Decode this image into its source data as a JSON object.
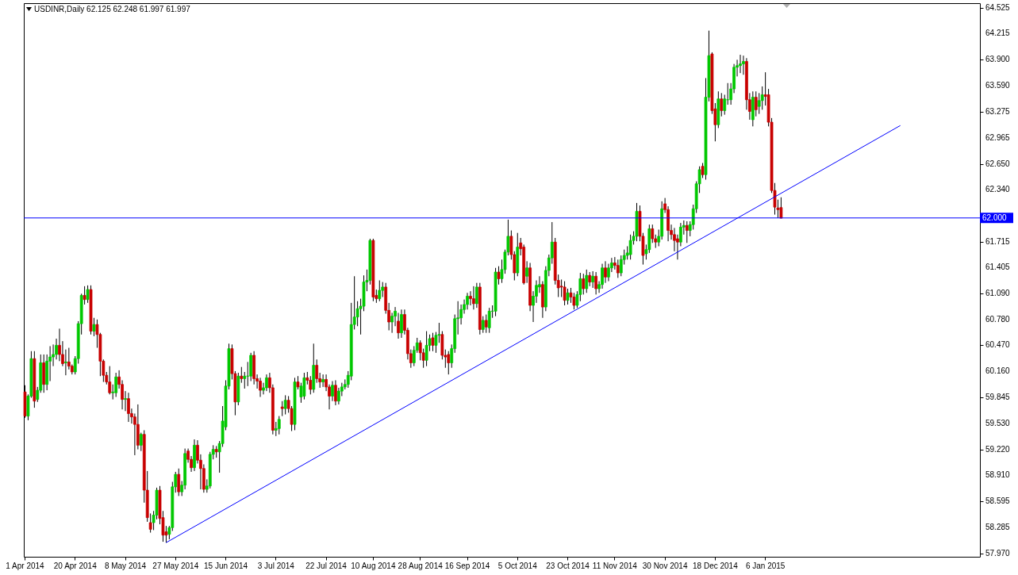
{
  "chart_data": {
    "type": "candlestick",
    "title": "USDINR,Daily  62.125 62.248 61.997 61.997",
    "categories": [
      "1 Apr 2014",
      null,
      null,
      null,
      null,
      null,
      null,
      null,
      null,
      null,
      null,
      null,
      null,
      null,
      null,
      null,
      "20 Apr 2014",
      null,
      null,
      null,
      null,
      null,
      null,
      null,
      null,
      null,
      null,
      null,
      null,
      null,
      null,
      null,
      "8 May 2014",
      null,
      null,
      null,
      null,
      null,
      null,
      null,
      null,
      null,
      null,
      null,
      null,
      null,
      null,
      null,
      "27 May 2014",
      null,
      null,
      null,
      null,
      null,
      null,
      null,
      null,
      null,
      null,
      null,
      null,
      null,
      null,
      null,
      "15 Jun 2014",
      null,
      null,
      null,
      null,
      null,
      null,
      null,
      null,
      null,
      null,
      null,
      null,
      null,
      null,
      null,
      "3 Jul 2014",
      null,
      null,
      null,
      null,
      null,
      null,
      null,
      null,
      null,
      null,
      null,
      null,
      null,
      null,
      null,
      "22 Jul 2014",
      null,
      null,
      null,
      null,
      null,
      null,
      null,
      null,
      null,
      null,
      null,
      null,
      null,
      null,
      "10 Aug 2014",
      null,
      null,
      null,
      null,
      null,
      null,
      null,
      null,
      null,
      null,
      null,
      null,
      null,
      null,
      "28 Aug 2014",
      null,
      null,
      null,
      null,
      null,
      null,
      null,
      null,
      null,
      null,
      null,
      null,
      null,
      null,
      "16 Sep 2014",
      null,
      null,
      null,
      null,
      null,
      null,
      null,
      null,
      null,
      null,
      null,
      null,
      null,
      null,
      null,
      "5 Oct 2014",
      null,
      null,
      null,
      null,
      null,
      null,
      null,
      null,
      null,
      null,
      null,
      null,
      null,
      null,
      null,
      "23 Oct 2014",
      null,
      null,
      null,
      null,
      null,
      null,
      null,
      null,
      null,
      null,
      null,
      null,
      null,
      null,
      "11 Nov 2014",
      null,
      null,
      null,
      null,
      null,
      null,
      null,
      null,
      null,
      null,
      null,
      null,
      null,
      null,
      null,
      "30 Nov 2014",
      null,
      null,
      null,
      null,
      null,
      null,
      null,
      null,
      null,
      null,
      null,
      null,
      null,
      null,
      null,
      "18 Dec 2014",
      null,
      null,
      null,
      null,
      null,
      null,
      null,
      null,
      null,
      null,
      null,
      null,
      null,
      null,
      null,
      "6 Jan 2015",
      null,
      null,
      null,
      null,
      null,
      null,
      null,
      null,
      null,
      null,
      null,
      null,
      null,
      null,
      null,
      null,
      null,
      null,
      null,
      null,
      null,
      null,
      null,
      null,
      null,
      null,
      null,
      null,
      null,
      null,
      null,
      null,
      null,
      null,
      null,
      null,
      null,
      null,
      null,
      null,
      null,
      null,
      null,
      null,
      null,
      null,
      null,
      null,
      null,
      null,
      null,
      null,
      null,
      null,
      null,
      null,
      null,
      null,
      null,
      null,
      null,
      null,
      null,
      null,
      null,
      null,
      null,
      null
    ],
    "ohlc": [
      [
        59.91,
        59.99,
        59.6,
        59.62
      ],
      [
        59.62,
        59.88,
        59.57,
        59.86
      ],
      [
        59.86,
        60.4,
        59.84,
        60.31
      ],
      [
        60.31,
        60.4,
        59.72,
        59.8
      ],
      [
        59.82,
        59.97,
        59.79,
        59.93
      ],
      [
        59.93,
        60.36,
        59.9,
        60.26
      ],
      [
        60.26,
        60.36,
        59.9,
        60.0
      ],
      [
        60.0,
        60.36,
        59.93,
        60.28
      ],
      [
        60.28,
        60.46,
        60.04,
        60.33
      ],
      [
        60.33,
        60.48,
        60.22,
        60.36
      ],
      [
        60.36,
        60.55,
        60.3,
        60.47
      ],
      [
        60.47,
        60.67,
        60.28,
        60.36
      ],
      [
        60.36,
        60.52,
        60.22,
        60.25
      ],
      [
        60.26,
        60.42,
        60.11,
        60.27
      ],
      [
        60.27,
        60.44,
        60.18,
        60.22
      ],
      [
        60.22,
        60.24,
        60.12,
        60.15
      ],
      [
        60.15,
        60.34,
        60.12,
        60.31
      ],
      [
        60.31,
        60.76,
        60.25,
        60.73
      ],
      [
        60.73,
        61.09,
        60.6,
        61.07
      ],
      [
        61.07,
        61.18,
        60.96,
        61.02
      ],
      [
        61.02,
        61.19,
        60.98,
        61.14
      ],
      [
        61.14,
        61.19,
        60.6,
        60.64
      ],
      [
        60.64,
        60.8,
        60.58,
        60.72
      ],
      [
        60.72,
        60.78,
        60.44,
        60.6
      ],
      [
        60.6,
        60.62,
        60.1,
        60.28
      ],
      [
        60.28,
        60.3,
        60.03,
        60.11
      ],
      [
        60.11,
        60.15,
        60.0,
        60.03
      ],
      [
        60.03,
        60.22,
        59.88,
        59.9
      ],
      [
        59.9,
        60.0,
        59.82,
        59.91
      ],
      [
        59.9,
        60.14,
        59.85,
        60.09
      ],
      [
        60.09,
        60.17,
        59.95,
        60.0
      ],
      [
        60.0,
        60.05,
        59.7,
        59.82
      ],
      [
        59.82,
        59.92,
        59.68,
        59.83
      ],
      [
        59.83,
        59.9,
        59.55,
        59.65
      ],
      [
        59.65,
        59.71,
        59.53,
        59.61
      ],
      [
        59.61,
        59.65,
        59.15,
        59.52
      ],
      [
        59.52,
        59.76,
        59.22,
        59.27
      ],
      [
        59.27,
        59.42,
        59.2,
        59.4
      ],
      [
        59.4,
        59.45,
        58.58,
        58.73
      ],
      [
        58.73,
        58.96,
        58.35,
        58.4
      ],
      [
        58.34,
        58.45,
        58.22,
        58.26
      ],
      [
        58.34,
        58.48,
        58.25,
        58.43
      ],
      [
        58.43,
        58.76,
        58.38,
        58.73
      ],
      [
        58.73,
        58.78,
        58.32,
        58.39
      ],
      [
        58.4,
        58.48,
        58.11,
        58.19
      ],
      [
        58.23,
        58.3,
        58.1,
        58.19
      ],
      [
        58.2,
        58.3,
        58.14,
        58.28
      ],
      [
        58.28,
        58.83,
        58.24,
        58.77
      ],
      [
        58.77,
        58.95,
        58.7,
        58.92
      ],
      [
        58.92,
        58.99,
        58.66,
        58.71
      ],
      [
        58.71,
        58.84,
        58.66,
        58.79
      ],
      [
        58.79,
        59.23,
        58.74,
        59.17
      ],
      [
        59.2,
        59.23,
        59.06,
        59.1
      ],
      [
        59.1,
        59.14,
        58.95,
        59.0
      ],
      [
        59.0,
        59.34,
        58.96,
        59.27
      ],
      [
        59.27,
        59.33,
        59.05,
        59.09
      ],
      [
        59.09,
        59.16,
        58.74,
        58.99
      ],
      [
        58.99,
        59.04,
        58.7,
        58.74
      ],
      [
        58.74,
        58.86,
        58.7,
        58.78
      ],
      [
        58.78,
        59.19,
        58.75,
        59.16
      ],
      [
        59.16,
        59.27,
        59.1,
        59.22
      ],
      [
        59.22,
        59.26,
        59.12,
        59.19
      ],
      [
        59.19,
        59.32,
        58.94,
        59.29
      ],
      [
        59.29,
        59.74,
        59.25,
        59.56
      ],
      [
        59.49,
        60.05,
        59.45,
        59.98
      ],
      [
        59.98,
        60.49,
        59.94,
        60.43
      ],
      [
        60.43,
        60.48,
        60.06,
        60.13
      ],
      [
        60.13,
        60.16,
        59.63,
        59.79
      ],
      [
        59.79,
        60.14,
        59.75,
        60.1
      ],
      [
        60.1,
        60.21,
        60.02,
        60.07
      ],
      [
        60.07,
        60.15,
        59.95,
        60.1
      ],
      [
        60.1,
        60.27,
        59.98,
        60.1
      ],
      [
        60.1,
        60.38,
        60.04,
        60.35
      ],
      [
        60.35,
        60.4,
        60.0,
        60.07
      ],
      [
        60.07,
        60.12,
        59.95,
        60.04
      ],
      [
        60.04,
        60.08,
        59.85,
        59.93
      ],
      [
        59.93,
        60.02,
        59.88,
        59.96
      ],
      [
        59.96,
        60.12,
        59.92,
        60.08
      ],
      [
        60.08,
        60.14,
        59.9,
        59.96
      ],
      [
        59.96,
        60.0,
        59.4,
        59.45
      ],
      [
        59.45,
        59.55,
        59.38,
        59.47
      ],
      [
        59.47,
        59.62,
        59.4,
        59.58
      ],
      [
        59.73,
        59.8,
        59.62,
        59.71
      ],
      [
        59.71,
        59.87,
        59.64,
        59.81
      ],
      [
        59.81,
        59.86,
        59.66,
        59.71
      ],
      [
        59.71,
        59.74,
        59.44,
        59.52
      ],
      [
        59.52,
        60.08,
        59.45,
        60.03
      ],
      [
        60.03,
        60.1,
        59.94,
        59.97
      ],
      [
        59.85,
        60.02,
        59.78,
        59.98
      ],
      [
        59.86,
        60.14,
        59.82,
        60.08
      ],
      [
        60.08,
        60.15,
        60.0,
        60.05
      ],
      [
        60.05,
        60.1,
        59.88,
        59.94
      ],
      [
        59.94,
        60.49,
        59.9,
        60.23
      ],
      [
        60.23,
        60.3,
        60.02,
        60.07
      ],
      [
        60.07,
        60.14,
        59.96,
        60.03
      ],
      [
        60.03,
        60.12,
        59.97,
        60.06
      ],
      [
        60.06,
        60.12,
        59.92,
        59.97
      ],
      [
        59.97,
        60.0,
        59.7,
        59.86
      ],
      [
        59.86,
        60.04,
        59.8,
        59.99
      ],
      [
        59.99,
        60.05,
        59.75,
        59.8
      ],
      [
        59.8,
        59.96,
        59.76,
        59.92
      ],
      [
        59.92,
        60.02,
        59.86,
        59.97
      ],
      [
        59.97,
        60.06,
        59.94,
        60.0
      ],
      [
        60.0,
        60.16,
        59.96,
        60.11
      ],
      [
        60.1,
        60.98,
        60.05,
        60.72
      ],
      [
        60.72,
        61.3,
        60.66,
        60.81
      ],
      [
        60.81,
        61.0,
        60.7,
        60.91
      ],
      [
        60.91,
        61.03,
        60.6,
        60.94
      ],
      [
        60.94,
        61.31,
        60.88,
        61.23
      ],
      [
        61.23,
        61.38,
        61.12,
        61.25
      ],
      [
        61.25,
        61.75,
        61.2,
        61.73
      ],
      [
        61.73,
        61.75,
        61.0,
        61.05
      ],
      [
        61.07,
        61.14,
        60.98,
        61.03
      ],
      [
        61.03,
        61.25,
        61.0,
        61.13
      ],
      [
        61.13,
        61.23,
        61.05,
        61.17
      ],
      [
        61.17,
        61.22,
        60.85,
        60.89
      ],
      [
        60.89,
        60.98,
        60.65,
        60.75
      ],
      [
        60.75,
        60.86,
        60.62,
        60.82
      ],
      [
        60.82,
        60.93,
        60.7,
        60.88
      ],
      [
        60.76,
        60.86,
        60.55,
        60.62
      ],
      [
        60.62,
        60.9,
        60.56,
        60.84
      ],
      [
        60.84,
        60.9,
        60.6,
        60.65
      ],
      [
        60.65,
        60.68,
        60.3,
        60.37
      ],
      [
        60.37,
        60.42,
        60.2,
        60.26
      ],
      [
        60.26,
        60.46,
        60.22,
        60.41
      ],
      [
        60.41,
        60.56,
        60.38,
        60.5
      ],
      [
        60.5,
        60.53,
        60.29,
        60.38
      ],
      [
        60.38,
        60.43,
        60.2,
        60.29
      ],
      [
        60.29,
        60.64,
        60.22,
        60.47
      ],
      [
        60.47,
        60.6,
        60.4,
        60.55
      ],
      [
        60.56,
        60.62,
        60.4,
        60.47
      ],
      [
        60.47,
        60.63,
        60.38,
        60.59
      ],
      [
        60.59,
        60.74,
        60.5,
        60.6
      ],
      [
        60.6,
        60.64,
        60.3,
        60.35
      ],
      [
        60.35,
        60.42,
        60.2,
        60.33
      ],
      [
        60.36,
        60.4,
        60.12,
        60.26
      ],
      [
        60.26,
        60.48,
        60.2,
        60.43
      ],
      [
        60.43,
        60.84,
        60.38,
        60.79
      ],
      [
        60.79,
        61.0,
        60.6,
        60.8
      ],
      [
        60.8,
        60.96,
        60.72,
        60.9
      ],
      [
        60.9,
        61.02,
        60.85,
        60.96
      ],
      [
        60.96,
        61.1,
        60.9,
        61.06
      ],
      [
        61.06,
        61.12,
        60.95,
        61.03
      ],
      [
        61.03,
        61.18,
        60.9,
        60.97
      ],
      [
        60.97,
        61.22,
        60.92,
        61.17
      ],
      [
        61.17,
        61.22,
        60.6,
        60.66
      ],
      [
        60.66,
        60.82,
        60.62,
        60.77
      ],
      [
        60.77,
        60.84,
        60.62,
        60.69
      ],
      [
        60.68,
        60.92,
        60.62,
        60.88
      ],
      [
        60.88,
        60.95,
        60.8,
        60.88
      ],
      [
        60.88,
        61.4,
        60.82,
        61.35
      ],
      [
        61.35,
        61.42,
        61.2,
        61.27
      ],
      [
        61.27,
        61.5,
        61.22,
        61.38
      ],
      [
        61.38,
        61.62,
        61.33,
        61.59
      ],
      [
        61.59,
        61.98,
        61.55,
        61.78
      ],
      [
        61.78,
        61.85,
        61.5,
        61.56
      ],
      [
        61.56,
        61.6,
        61.25,
        61.34
      ],
      [
        61.34,
        61.82,
        61.3,
        61.65
      ],
      [
        61.7,
        61.76,
        61.55,
        61.63
      ],
      [
        61.65,
        61.68,
        61.2,
        61.22
      ],
      [
        61.3,
        61.48,
        61.22,
        61.4
      ],
      [
        61.4,
        61.46,
        60.88,
        60.95
      ],
      [
        60.95,
        61.12,
        60.75,
        61.06
      ],
      [
        61.06,
        61.25,
        60.98,
        61.19
      ],
      [
        61.17,
        61.3,
        61.1,
        61.2
      ],
      [
        61.2,
        61.24,
        60.8,
        60.93
      ],
      [
        60.93,
        61.42,
        60.88,
        61.37
      ],
      [
        61.37,
        61.56,
        61.3,
        61.52
      ],
      [
        61.52,
        61.95,
        61.45,
        61.71
      ],
      [
        61.71,
        61.76,
        61.2,
        61.25
      ],
      [
        61.25,
        61.32,
        61.05,
        61.16
      ],
      [
        61.18,
        61.26,
        61.05,
        61.17
      ],
      [
        61.17,
        61.24,
        60.95,
        61.01
      ],
      [
        61.01,
        61.15,
        60.96,
        61.1
      ],
      [
        61.1,
        61.16,
        60.98,
        61.05
      ],
      [
        61.05,
        61.1,
        60.9,
        60.95
      ],
      [
        60.95,
        61.12,
        60.92,
        61.08
      ],
      [
        61.08,
        61.34,
        61.0,
        61.27
      ],
      [
        61.27,
        61.33,
        61.08,
        61.15
      ],
      [
        61.15,
        61.38,
        61.1,
        61.31
      ],
      [
        61.31,
        61.35,
        61.18,
        61.23
      ],
      [
        61.23,
        61.36,
        61.16,
        61.3
      ],
      [
        61.3,
        61.35,
        61.08,
        61.15
      ],
      [
        61.15,
        61.24,
        61.1,
        61.2
      ],
      [
        61.2,
        61.45,
        61.15,
        61.4
      ],
      [
        61.4,
        61.48,
        61.22,
        61.29
      ],
      [
        61.29,
        61.45,
        61.24,
        61.4
      ],
      [
        61.4,
        61.52,
        61.35,
        61.46
      ],
      [
        61.46,
        61.53,
        61.38,
        61.43
      ],
      [
        61.43,
        61.5,
        61.28,
        61.34
      ],
      [
        61.34,
        61.55,
        61.3,
        61.5
      ],
      [
        61.5,
        61.62,
        61.44,
        61.55
      ],
      [
        61.55,
        61.66,
        61.5,
        61.58
      ],
      [
        61.56,
        61.8,
        61.5,
        61.73
      ],
      [
        61.73,
        61.84,
        61.68,
        61.78
      ],
      [
        61.78,
        62.18,
        61.72,
        62.08
      ],
      [
        62.08,
        62.15,
        61.72,
        61.78
      ],
      [
        61.78,
        61.82,
        61.44,
        61.55
      ],
      [
        61.57,
        61.68,
        61.5,
        61.62
      ],
      [
        61.62,
        61.92,
        61.58,
        61.87
      ],
      [
        61.87,
        61.92,
        61.7,
        61.75
      ],
      [
        61.75,
        61.8,
        61.64,
        61.71
      ],
      [
        61.71,
        61.86,
        61.66,
        61.78
      ],
      [
        61.78,
        62.2,
        61.74,
        62.11
      ],
      [
        62.17,
        62.24,
        62.06,
        62.1
      ],
      [
        62.1,
        62.14,
        61.72,
        61.85
      ],
      [
        61.85,
        61.92,
        61.74,
        61.8
      ],
      [
        61.8,
        61.88,
        61.6,
        61.73
      ],
      [
        61.75,
        61.8,
        61.5,
        61.71
      ],
      [
        61.71,
        61.94,
        61.66,
        61.89
      ],
      [
        61.89,
        61.97,
        61.8,
        61.91
      ],
      [
        61.91,
        61.96,
        61.7,
        61.85
      ],
      [
        61.85,
        61.96,
        61.78,
        61.92
      ],
      [
        61.92,
        62.16,
        61.86,
        62.11
      ],
      [
        62.11,
        62.44,
        62.06,
        62.41
      ],
      [
        62.41,
        62.62,
        62.3,
        62.58
      ],
      [
        62.62,
        62.66,
        62.48,
        62.52
      ],
      [
        62.52,
        63.68,
        62.46,
        63.45
      ],
      [
        63.45,
        64.25,
        63.4,
        63.95
      ],
      [
        63.97,
        63.99,
        63.25,
        63.29
      ],
      [
        63.31,
        63.38,
        62.92,
        63.12
      ],
      [
        63.12,
        63.52,
        63.08,
        63.43
      ],
      [
        63.43,
        63.5,
        63.22,
        63.29
      ],
      [
        63.29,
        63.48,
        63.24,
        63.43
      ],
      [
        63.42,
        63.62,
        63.36,
        63.42
      ],
      [
        63.42,
        63.62,
        63.36,
        63.55
      ],
      [
        63.55,
        63.85,
        63.5,
        63.81
      ],
      [
        63.81,
        63.9,
        63.7,
        63.83
      ],
      [
        63.83,
        63.96,
        63.74,
        63.85
      ],
      [
        63.85,
        63.95,
        63.72,
        63.88
      ],
      [
        63.88,
        63.92,
        63.3,
        63.42
      ],
      [
        63.42,
        63.5,
        63.18,
        63.28
      ],
      [
        63.18,
        63.52,
        63.1,
        63.45
      ],
      [
        63.45,
        63.52,
        63.22,
        63.3
      ],
      [
        63.34,
        63.5,
        63.25,
        63.41
      ],
      [
        63.41,
        63.58,
        63.3,
        63.48
      ],
      [
        63.48,
        63.75,
        63.35,
        63.46
      ],
      [
        63.48,
        63.55,
        63.1,
        63.15
      ],
      [
        63.15,
        63.2,
        62.3,
        62.33
      ],
      [
        62.33,
        62.42,
        62.04,
        62.13
      ],
      [
        62.12,
        62.22,
        62.0,
        62.1
      ],
      [
        62.125,
        62.248,
        61.997,
        61.997
      ],
      null,
      null,
      null,
      null,
      null,
      null,
      null,
      null,
      null,
      null,
      null,
      null,
      null,
      null,
      null,
      null,
      null,
      null,
      null,
      null,
      null,
      null,
      null,
      null,
      null,
      null,
      null,
      null,
      null,
      null,
      null,
      null,
      null,
      null,
      null,
      null,
      null,
      null,
      null,
      null,
      null,
      null,
      null,
      null,
      null,
      null,
      null,
      null,
      null,
      null,
      null,
      null,
      null,
      null,
      null,
      null,
      null,
      null,
      null,
      null,
      null,
      null,
      null
    ],
    "colors": [
      "#c80000",
      "#00c800",
      "#00c800",
      "#c80000",
      "#00c800",
      "#00c800",
      "#c80000",
      "#00c800",
      "#00c800",
      "#00c800",
      "#00c800",
      "#c80000",
      "#c80000",
      "#00c800",
      "#c80000",
      "#c80000",
      "#00c800",
      "#00c800",
      "#00c800",
      "#c80000",
      "#00c800",
      "#c80000",
      "#00c800",
      "#c80000",
      "#c80000",
      "#c80000",
      "#c80000",
      "#c80000",
      "#00c800",
      "#00c800",
      "#c80000",
      "#c80000",
      "#00c800",
      "#c80000",
      "#c80000",
      "#c80000",
      "#c80000",
      "#00c800",
      "#c80000",
      "#c80000",
      "#c80000",
      "#00c800",
      "#00c800",
      "#c80000",
      "#c80000",
      "#c80000",
      "#00c800",
      "#00c800",
      "#00c800",
      "#c80000",
      "#00c800",
      "#00c800",
      "#c80000",
      "#c80000",
      "#00c800",
      "#c80000",
      "#c80000",
      "#c80000",
      "#00c800",
      "#00c800",
      "#00c800",
      "#c80000",
      "#00c800",
      "#00c800",
      "#00c800",
      "#00c800",
      "#c80000",
      "#c80000",
      "#00c800",
      "#c80000",
      "#00c800",
      "#00c800",
      "#00c800",
      "#c80000",
      "#c80000",
      "#c80000",
      "#00c800",
      "#00c800",
      "#c80000",
      "#c80000",
      "#00c800",
      "#00c800",
      "#c80000",
      "#00c800",
      "#c80000",
      "#c80000",
      "#00c800",
      "#c80000",
      "#00c800",
      "#00c800",
      "#c80000",
      "#c80000",
      "#00c800",
      "#c80000",
      "#c80000",
      "#00c800",
      "#c80000",
      "#c80000",
      "#00c800",
      "#c80000",
      "#00c800",
      "#00c800",
      "#00c800",
      "#00c800",
      "#00c800",
      "#00c800",
      "#00c800",
      "#00c800",
      "#00c800",
      "#00c800",
      "#00c800",
      "#c80000",
      "#c80000",
      "#00c800",
      "#00c800",
      "#c80000",
      "#c80000",
      "#00c800",
      "#00c800",
      "#c80000",
      "#00c800",
      "#c80000",
      "#c80000",
      "#c80000",
      "#00c800",
      "#00c800",
      "#c80000",
      "#c80000",
      "#00c800",
      "#00c800",
      "#c80000",
      "#00c800",
      "#00c800",
      "#c80000",
      "#c80000",
      "#c80000",
      "#00c800",
      "#00c800",
      "#00c800",
      "#00c800",
      "#00c800",
      "#00c800",
      "#c80000",
      "#c80000",
      "#00c800",
      "#c80000",
      "#00c800",
      "#c80000",
      "#00c800",
      "#00c800",
      "#00c800",
      "#c80000",
      "#00c800",
      "#00c800",
      "#00c800",
      "#c80000",
      "#c80000",
      "#00c800",
      "#c80000",
      "#c80000",
      "#00c800",
      "#c80000",
      "#00c800",
      "#00c800",
      "#00c800",
      "#c80000",
      "#00c800",
      "#00c800",
      "#00c800",
      "#c80000",
      "#c80000",
      "#c80000",
      "#c80000",
      "#00c800",
      "#c80000",
      "#c80000",
      "#00c800",
      "#00c800",
      "#c80000",
      "#00c800",
      "#c80000",
      "#00c800",
      "#c80000",
      "#00c800",
      "#00c800",
      "#c80000",
      "#00c800",
      "#00c800",
      "#c80000",
      "#c80000",
      "#00c800",
      "#00c800",
      "#00c800",
      "#00c800",
      "#00c800",
      "#00c800",
      "#c80000",
      "#c80000",
      "#00c800",
      "#00c800",
      "#c80000",
      "#c80000",
      "#00c800",
      "#00c800",
      "#c80000",
      "#c80000",
      "#c80000",
      "#c80000",
      "#c80000",
      "#00c800",
      "#00c800",
      "#c80000",
      "#00c800",
      "#00c800",
      "#00c800",
      "#00c800",
      "#c80000",
      "#00c800",
      "#00c800",
      "#c80000",
      "#c80000",
      "#00c800",
      "#c80000",
      "#00c800",
      "#00c800",
      "#00c800",
      "#00c800",
      "#00c800",
      "#00c800",
      "#00c800",
      "#c80000",
      "#c80000",
      "#00c800",
      "#c80000",
      "#00c800",
      "#00c800",
      "#c80000",
      "#c80000",
      "#c80000",
      "#c80000",
      "#c80000",
      "#c80000",
      null,
      null,
      null,
      null,
      null,
      null,
      null,
      null,
      null,
      null,
      null,
      null,
      null,
      null,
      null,
      null,
      null,
      null,
      null,
      null,
      null,
      null,
      null,
      null,
      null,
      null,
      null,
      null,
      null,
      null,
      null,
      null,
      null,
      null,
      null,
      null,
      null,
      null,
      null,
      null,
      null,
      null,
      null,
      null,
      null,
      null,
      null,
      null,
      null,
      null,
      null,
      null,
      null,
      null,
      null,
      null,
      null,
      null,
      null,
      null,
      null,
      null,
      null
    ],
    "series": [
      {
        "type": "line",
        "color": "#0000ff",
        "values": [
          null,
          null,
          null,
          null,
          null,
          null,
          null,
          null,
          null,
          null,
          null,
          null,
          null,
          null,
          null,
          null,
          null,
          null,
          null,
          null,
          null,
          null,
          null,
          null,
          null,
          null,
          null,
          null,
          null,
          null,
          null,
          null,
          null,
          null,
          null,
          null,
          null,
          null,
          null,
          null,
          null,
          null,
          null,
          null,
          null,
          58.1,
          null,
          null,
          null,
          null,
          null,
          null,
          null,
          null,
          null,
          null,
          null,
          null,
          null,
          null,
          null,
          null,
          null,
          null,
          null,
          null,
          null,
          null,
          null,
          null,
          null,
          null,
          null,
          null,
          null,
          null,
          null,
          null,
          null,
          null,
          null,
          null,
          null,
          null,
          null,
          null,
          null,
          null,
          null,
          null,
          null,
          null,
          null,
          null,
          null,
          null,
          null,
          null,
          null,
          null,
          null,
          null,
          null,
          null,
          null,
          null,
          null,
          null,
          null,
          null,
          null,
          null,
          null,
          null,
          null,
          null,
          null,
          null,
          null,
          null,
          null,
          null,
          null,
          null,
          null,
          null,
          null,
          null,
          null,
          null,
          null,
          null,
          null,
          null,
          null,
          null,
          null,
          null,
          null,
          null,
          null,
          null,
          null,
          null,
          null,
          null,
          null,
          null,
          null,
          null,
          null,
          null,
          null,
          null,
          null,
          null,
          null,
          null,
          null,
          null,
          null,
          null,
          null,
          null,
          null,
          null,
          null,
          null,
          null,
          null,
          null,
          null,
          null,
          null,
          null,
          null,
          null,
          null,
          null,
          null,
          null,
          null,
          null,
          null,
          null,
          null,
          null,
          null,
          null,
          null,
          null,
          null,
          null,
          null,
          null,
          null,
          null,
          null,
          null,
          null,
          null,
          null,
          null,
          null,
          null,
          null,
          null,
          null,
          null,
          null,
          null,
          null,
          null,
          null,
          null,
          null,
          null,
          null,
          null,
          null,
          null,
          null,
          null,
          null,
          null,
          null,
          null,
          null,
          null,
          null,
          null,
          null,
          null,
          null,
          null,
          null,
          null,
          null,
          null,
          null,
          null,
          null,
          null,
          null,
          null,
          null,
          null,
          null,
          null,
          null,
          null,
          null,
          null,
          null,
          null,
          null,
          null,
          null,
          null,
          null,
          null,
          null,
          null,
          null,
          null,
          null,
          null,
          null,
          null,
          null,
          null,
          null,
          null,
          null,
          null,
          null,
          null,
          null,
          null,
          63.11,
          null,
          null,
          null,
          null,
          null,
          null,
          null,
          null,
          null,
          null,
          null,
          null,
          null,
          null,
          null,
          null,
          null,
          null,
          null,
          null,
          null,
          null,
          null,
          null,
          null
        ]
      }
    ],
    "ylim": [
      57.93,
      64.58
    ],
    "yticks": [
      64.525,
      64.215,
      {
        "value": 63.9,
        "label": "63.900"
      },
      {
        "value": 63.59,
        "label": "63.590"
      },
      63.275,
      62.965,
      {
        "value": 62.65,
        "label": "62.650"
      },
      {
        "value": 62.34,
        "label": "62.340"
      },
      61.715,
      61.405,
      {
        "value": 61.09,
        "label": "61.090"
      },
      {
        "value": 60.78,
        "label": "60.780"
      },
      {
        "value": 60.47,
        "label": "60.470"
      },
      {
        "value": 60.16,
        "label": "60.160"
      },
      59.845,
      {
        "value": 59.53,
        "label": "59.530"
      },
      {
        "value": 59.22,
        "label": "59.220"
      },
      {
        "value": 58.91,
        "label": "58.910"
      },
      58.595,
      58.285,
      {
        "value": 57.97,
        "label": "57.970"
      }
    ],
    "ref_lines": [
      {
        "axis": "y",
        "value": 62,
        "label": "62.000",
        "color": "#0000ff"
      }
    ]
  }
}
